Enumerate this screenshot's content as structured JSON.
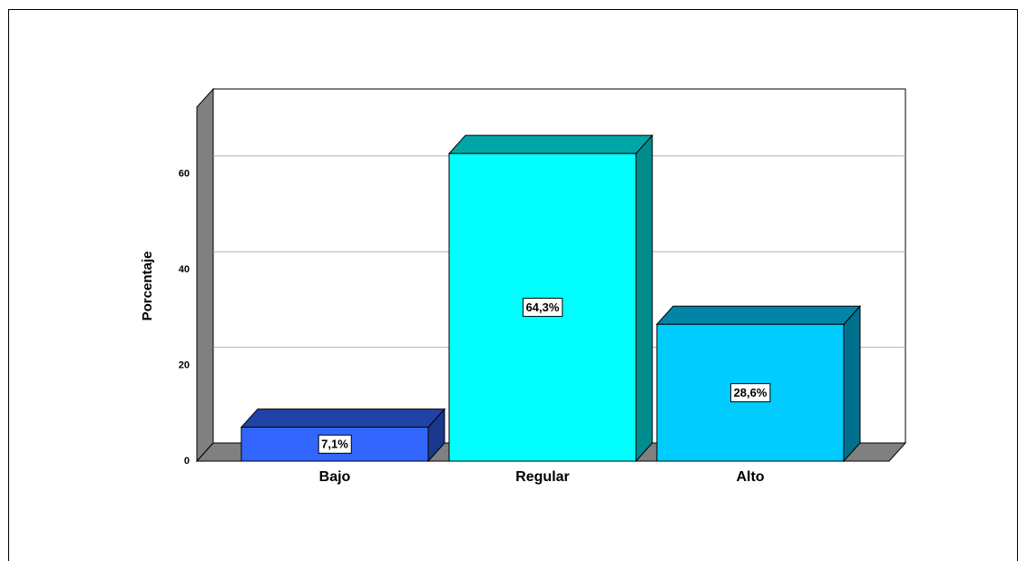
{
  "chart_data": {
    "type": "bar3d",
    "ylabel": "Porcentaje",
    "categories": [
      "Bajo",
      "Regular",
      "Alto"
    ],
    "values": [
      7.1,
      64.3,
      28.6
    ],
    "value_labels": [
      "7,1%",
      "64,3%",
      "28,6%"
    ],
    "colors": [
      "#3366ff",
      "#00ffff",
      "#00ccff"
    ],
    "ylim": [
      0,
      74
    ],
    "yticks": [
      0,
      20,
      40,
      60
    ],
    "grid": true
  }
}
